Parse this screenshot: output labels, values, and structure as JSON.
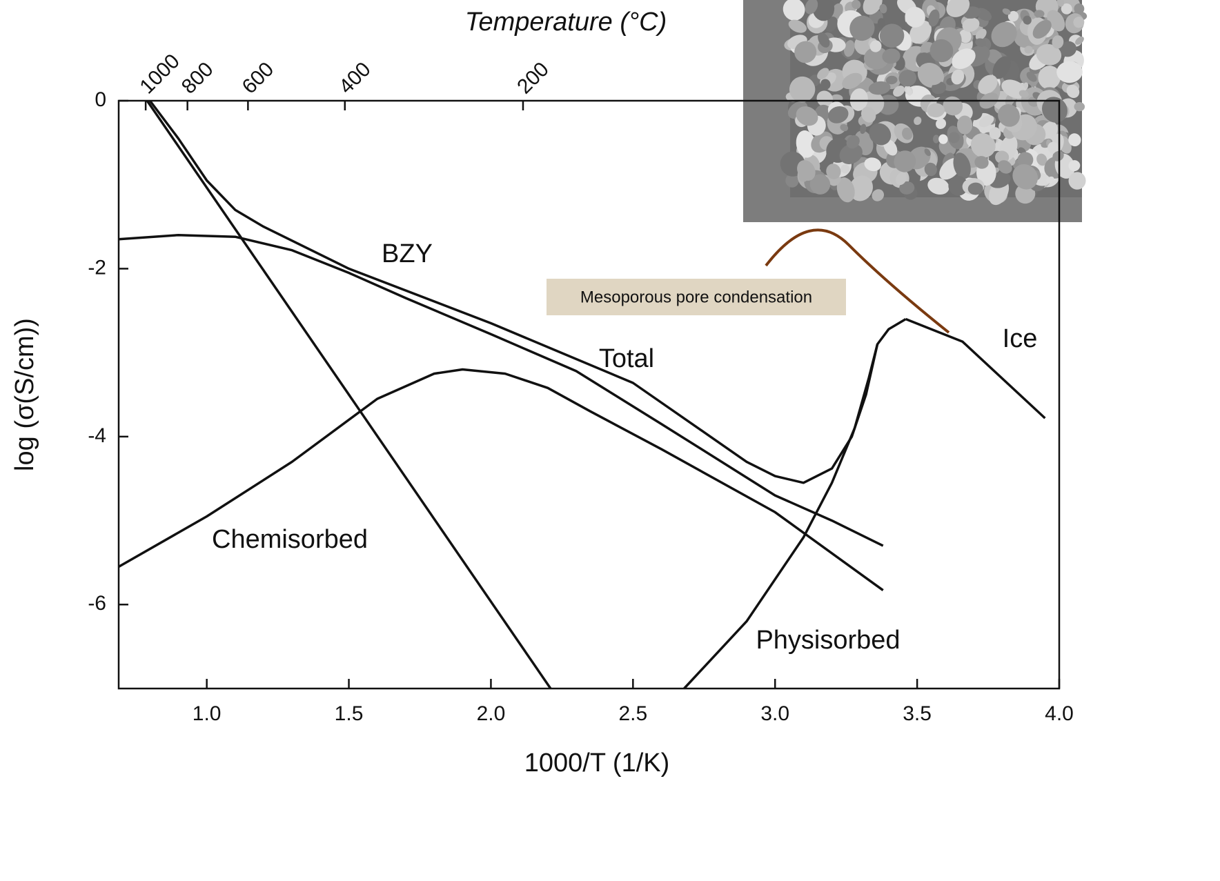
{
  "chart_data": {
    "type": "line",
    "x_label": "1000/T (1/K)",
    "x2_label": "Temperature (°C)",
    "y_label": "log (σ(S/cm))",
    "annotation": "Mesoporous pore condensation",
    "xlim": [
      0.69,
      4.0
    ],
    "ylim": [
      -7,
      0
    ],
    "xticks": [
      {
        "value": 1.0,
        "label": "1.0"
      },
      {
        "value": 1.5,
        "label": "1.5"
      },
      {
        "value": 2.0,
        "label": "2.0"
      },
      {
        "value": 2.5,
        "label": "2.5"
      },
      {
        "value": 3.0,
        "label": "3.0"
      },
      {
        "value": 3.5,
        "label": "3.5"
      },
      {
        "value": 4.0,
        "label": "4.0"
      }
    ],
    "x2ticks": [
      {
        "value": 0.785,
        "label": "1000"
      },
      {
        "value": 0.932,
        "label": "800"
      },
      {
        "value": 1.145,
        "label": "600"
      },
      {
        "value": 1.486,
        "label": "400"
      },
      {
        "value": 2.113,
        "label": "200"
      }
    ],
    "yticks": [
      0,
      -2,
      -4,
      -6
    ],
    "series": [
      {
        "name": "BZY",
        "color": "#111111",
        "x": [
          0.69,
          0.9,
          1.1,
          1.3,
          1.5,
          1.7,
          2.0,
          2.3,
          2.6,
          3.0,
          3.2,
          3.38
        ],
        "y": [
          -1.65,
          -1.6,
          -1.62,
          -1.78,
          -2.05,
          -2.35,
          -2.78,
          -3.22,
          -3.85,
          -4.7,
          -5.0,
          -5.3
        ]
      },
      {
        "name": "Total",
        "color": "#111111",
        "x": [
          0.8,
          0.9,
          1.0,
          1.1,
          1.2,
          1.5,
          2.0,
          2.5,
          2.9,
          3.0,
          3.1,
          3.2,
          3.27,
          3.32,
          3.36,
          3.4,
          3.46
        ],
        "y": [
          0,
          -0.45,
          -0.95,
          -1.3,
          -1.5,
          -2.0,
          -2.65,
          -3.36,
          -4.3,
          -4.47,
          -4.55,
          -4.38,
          -4.0,
          -3.5,
          -2.9,
          -2.72,
          -2.6
        ]
      },
      {
        "name": "Chemisorbed",
        "color": "#111111",
        "x": [
          0.69,
          1.0,
          1.3,
          1.6,
          1.8,
          1.9,
          2.05,
          2.2,
          2.35,
          2.6,
          3.0,
          3.38
        ],
        "y": [
          -5.55,
          -4.95,
          -4.3,
          -3.55,
          -3.25,
          -3.2,
          -3.25,
          -3.42,
          -3.7,
          -4.15,
          -4.9,
          -5.83
        ]
      },
      {
        "color": "#111111",
        "x": [
          0.79,
          2.21
        ],
        "y": [
          0,
          -7
        ]
      },
      {
        "name": "Physisorbed",
        "color": "#111111",
        "x": [
          2.68,
          2.9,
          3.1,
          3.2,
          3.28,
          3.33,
          3.36
        ],
        "y": [
          -7,
          -6.2,
          -5.2,
          -4.55,
          -3.9,
          -3.3,
          -2.9
        ]
      },
      {
        "name": "Ice",
        "color": "#111111",
        "x": [
          3.46,
          3.66,
          3.95
        ],
        "y": [
          -2.6,
          -2.87,
          -3.78
        ]
      }
    ]
  }
}
